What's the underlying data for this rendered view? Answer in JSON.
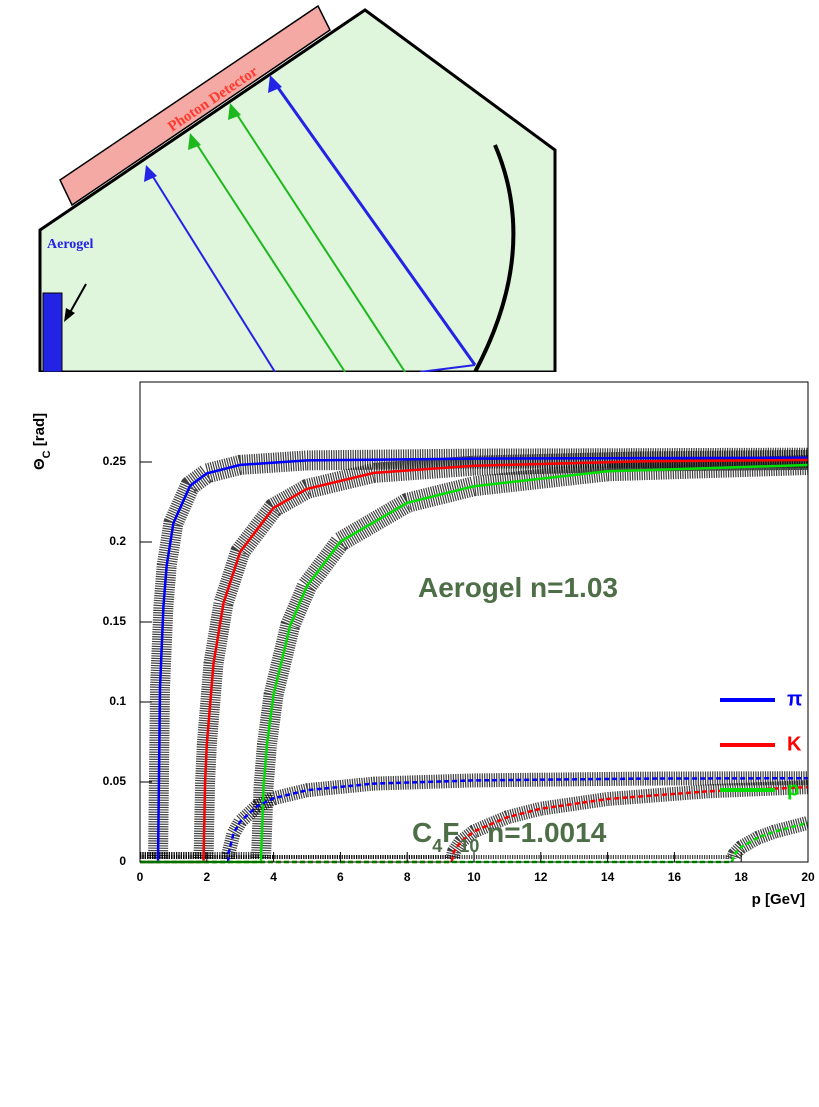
{
  "diagram": {
    "detector_label": "Photon Detector",
    "radiator_label": "Aerogel"
  },
  "chart_data": {
    "type": "line",
    "x_label": "p [GeV]",
    "y_label": [
      "Θ",
      "C",
      " [rad]"
    ],
    "xlim": [
      0,
      20
    ],
    "ylim": [
      0,
      0.3
    ],
    "xticks": [
      0,
      2,
      4,
      6,
      8,
      10,
      12,
      14,
      16,
      18,
      20
    ],
    "yticks": [
      0,
      0.05,
      0.1,
      0.15,
      0.2,
      0.25
    ],
    "annotations": [
      {
        "parts": [
          "Aerogel  n=1.03"
        ]
      },
      {
        "parts": [
          "C",
          "4",
          "F",
          "10",
          "  n=1.0014"
        ]
      }
    ],
    "series": [
      {
        "name": "π",
        "color": "#0000ff",
        "dashed": false,
        "x": [
          0,
          0.54,
          0.6,
          0.7,
          0.8,
          1,
          1.5,
          2,
          3,
          5,
          10,
          20
        ],
        "values": [
          0,
          0,
          0.1087,
          0.1595,
          0.1854,
          0.2118,
          0.2352,
          0.2429,
          0.2482,
          0.251,
          0.2521,
          0.2527
        ]
      },
      {
        "name": "K",
        "color": "#ff0000",
        "dashed": false,
        "x": [
          0,
          1.9,
          1.95,
          2,
          2.2,
          2.5,
          3,
          4,
          5,
          7,
          10,
          15,
          20
        ],
        "values": [
          0,
          0,
          0.0502,
          0.0734,
          0.124,
          0.1618,
          0.1939,
          0.2214,
          0.2332,
          0.2432,
          0.2477,
          0.2504,
          0.2513
        ]
      },
      {
        "name": "p",
        "color": "#00e000",
        "dashed": false,
        "x": [
          0,
          3.62,
          3.7,
          3.8,
          4,
          4.5,
          5,
          6,
          8,
          10,
          14,
          20
        ],
        "values": [
          0,
          0,
          0.0473,
          0.0731,
          0.1047,
          0.148,
          0.1725,
          0.2002,
          0.2245,
          0.2349,
          0.2442,
          0.2481
        ]
      },
      {
        "color": "#0000ff",
        "dashed": true,
        "x": [
          0,
          2.64,
          2.65,
          2.8,
          3,
          3.5,
          4,
          5,
          7,
          10,
          15,
          20
        ],
        "values": [
          0,
          0,
          0.0053,
          0.0178,
          0.0252,
          0.0348,
          0.0398,
          0.0449,
          0.049,
          0.051,
          0.0521,
          0.0524
        ]
      },
      {
        "color": "#ff0000",
        "dashed": true,
        "x": [
          0,
          9.33,
          9.4,
          9.6,
          10,
          11,
          12,
          14,
          17,
          20
        ],
        "values": [
          0,
          0,
          0.0066,
          0.0126,
          0.0191,
          0.028,
          0.0333,
          0.0394,
          0.0442,
          0.0468
        ]
      },
      {
        "color": "#00e000",
        "dashed": true,
        "x": [
          0,
          17.72,
          17.8,
          18,
          18.5,
          19,
          20
        ],
        "values": [
          0,
          0,
          0.0049,
          0.0093,
          0.0152,
          0.019,
          0.0245
        ]
      }
    ]
  }
}
